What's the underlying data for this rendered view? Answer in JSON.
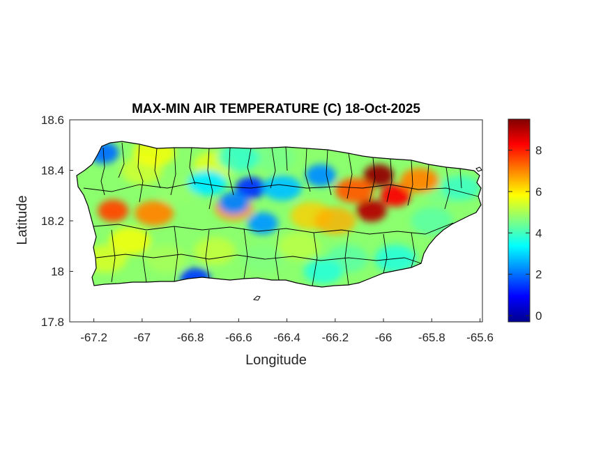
{
  "title": "MAX-MIN AIR TEMPERATURE (C) 18-Oct-2025",
  "xlabel": "Longitude",
  "ylabel": "Latitude",
  "x_ticks": [
    "-67.2",
    "-67",
    "-66.8",
    "-66.6",
    "-66.4",
    "-66.2",
    "-66",
    "-65.8",
    "-65.6"
  ],
  "y_ticks": [
    "18.6",
    "18.4",
    "18.2",
    "18",
    "17.8"
  ],
  "colorbar_ticks": [
    "8",
    "6",
    "4",
    "2",
    "0"
  ],
  "chart_data": {
    "type": "heatmap",
    "title": "MAX-MIN AIR TEMPERATURE (C) 18-Oct-2025",
    "xlabel": "Longitude",
    "ylabel": "Latitude",
    "xlim": [
      -67.3,
      -65.59
    ],
    "ylim": [
      17.8,
      18.6
    ],
    "colorbar": {
      "colormap": "jet",
      "range": [
        -0.3,
        9.5
      ],
      "ticks": [
        0,
        2,
        4,
        6,
        8
      ]
    },
    "hotspots": [
      {
        "lon": -66.02,
        "lat": 18.38,
        "value": 9.3
      },
      {
        "lon": -66.05,
        "lat": 18.24,
        "value": 9.0
      },
      {
        "lon": -65.95,
        "lat": 18.3,
        "value": 8.3
      },
      {
        "lon": -66.12,
        "lat": 18.32,
        "value": 7.4
      },
      {
        "lon": -65.85,
        "lat": 18.36,
        "value": 7.0
      },
      {
        "lon": -67.12,
        "lat": 18.24,
        "value": 7.6
      },
      {
        "lon": -66.95,
        "lat": 18.23,
        "value": 7.0
      },
      {
        "lon": -66.62,
        "lat": 18.25,
        "value": 6.8
      },
      {
        "lon": -66.55,
        "lat": 18.33,
        "value": 1.4
      },
      {
        "lon": -66.62,
        "lat": 18.27,
        "value": 2.2
      },
      {
        "lon": -66.5,
        "lat": 18.19,
        "value": 2.4
      },
      {
        "lon": -66.42,
        "lat": 18.33,
        "value": 2.8
      },
      {
        "lon": -66.26,
        "lat": 18.38,
        "value": 2.3
      },
      {
        "lon": -67.16,
        "lat": 18.47,
        "value": 2.0
      },
      {
        "lon": -66.78,
        "lat": 17.97,
        "value": 1.5
      },
      {
        "lon": -66.73,
        "lat": 18.35,
        "value": 3.2
      },
      {
        "lon": -65.68,
        "lat": 18.33,
        "value": 4.0
      },
      {
        "lon": -66.25,
        "lat": 18.0,
        "value": 3.8
      }
    ]
  },
  "colors": {
    "jet_dark_red": "#800000",
    "jet_dark_blue": "#00008f"
  }
}
